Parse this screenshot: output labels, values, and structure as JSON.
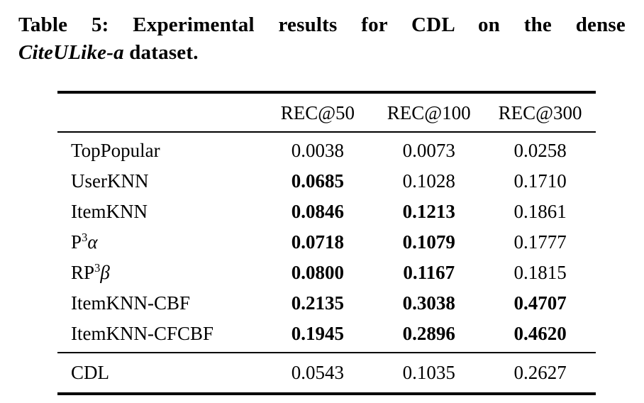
{
  "page": {
    "background": "#ffffff",
    "text_color": "#000000"
  },
  "caption": {
    "line1": "Table 5: Experimental results for CDL on the dense",
    "line2_italic": "CiteULike-a",
    "line2_rest": " dataset."
  },
  "table": {
    "headers": [
      "REC@50",
      "REC@100",
      "REC@300"
    ],
    "rows": [
      {
        "label": {
          "base": "TopPopular",
          "sup": "",
          "greek": ""
        },
        "values": [
          "0.0038",
          "0.0073",
          "0.0258"
        ],
        "bold": [
          false,
          false,
          false
        ]
      },
      {
        "label": {
          "base": "UserKNN",
          "sup": "",
          "greek": ""
        },
        "values": [
          "0.0685",
          "0.1028",
          "0.1710"
        ],
        "bold": [
          true,
          false,
          false
        ]
      },
      {
        "label": {
          "base": "ItemKNN",
          "sup": "",
          "greek": ""
        },
        "values": [
          "0.0846",
          "0.1213",
          "0.1861"
        ],
        "bold": [
          true,
          true,
          false
        ]
      },
      {
        "label": {
          "base": "P",
          "sup": "3",
          "greek": "α"
        },
        "values": [
          "0.0718",
          "0.1079",
          "0.1777"
        ],
        "bold": [
          true,
          true,
          false
        ]
      },
      {
        "label": {
          "base": "RP",
          "sup": "3",
          "greek": "β"
        },
        "values": [
          "0.0800",
          "0.1167",
          "0.1815"
        ],
        "bold": [
          true,
          true,
          false
        ]
      },
      {
        "label": {
          "base": "ItemKNN-CBF",
          "sup": "",
          "greek": ""
        },
        "values": [
          "0.2135",
          "0.3038",
          "0.4707"
        ],
        "bold": [
          true,
          true,
          true
        ]
      },
      {
        "label": {
          "base": "ItemKNN-CFCBF",
          "sup": "",
          "greek": ""
        },
        "values": [
          "0.1945",
          "0.2896",
          "0.4620"
        ],
        "bold": [
          true,
          true,
          true
        ]
      }
    ],
    "footer_row": {
      "label": "CDL",
      "values": [
        "0.0543",
        "0.1035",
        "0.2627"
      ],
      "bold": [
        false,
        false,
        false
      ]
    }
  }
}
